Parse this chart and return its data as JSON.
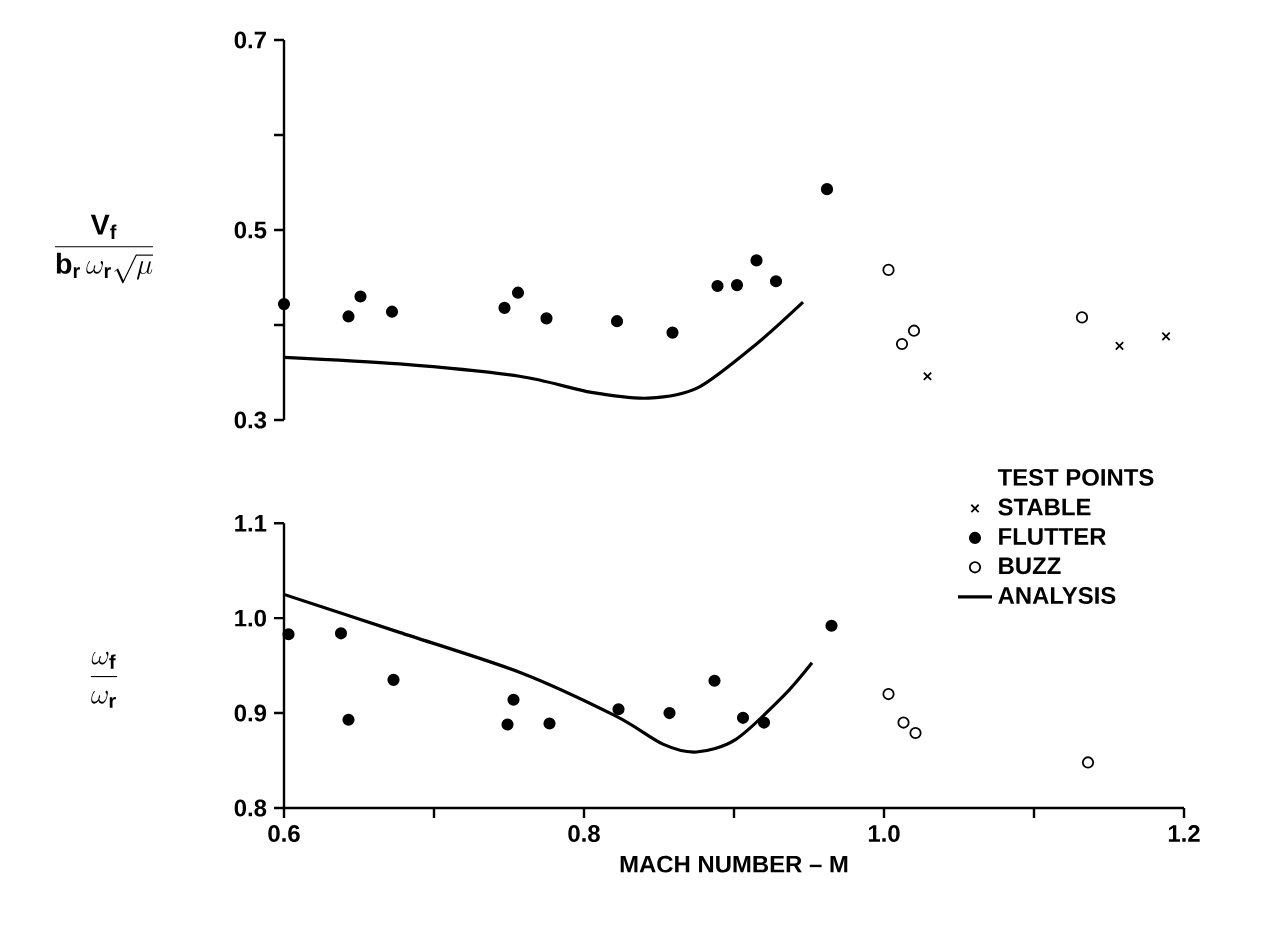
{
  "chart_data": [
    {
      "type": "scatter",
      "ylabel": "\\dfrac{\\mathbf{V}_{\\mathbf{f}}}{\\mathbf{b}_{\\mathbf{r}}\\,\\omega_{\\mathbf{r}}\\sqrt{\\mu}}",
      "xlim": [
        0.6,
        1.2
      ],
      "ylim": [
        0.3,
        0.7
      ],
      "yticks": [
        0.3,
        {
          "value": 0.4,
          "label": null
        },
        0.5,
        {
          "value": 0.6,
          "label": null
        },
        0.7
      ],
      "tick_labels": "y",
      "series": [
        {
          "marker": "cross",
          "color": "#000000",
          "x": [
            1.029,
            1.157,
            1.188
          ],
          "values": [
            0.346,
            0.378,
            0.388
          ]
        },
        {
          "marker": "circle",
          "color": "#000000",
          "x": [
            0.6,
            0.643,
            0.651,
            0.672,
            0.747,
            0.756,
            0.775,
            0.822,
            0.859,
            0.889,
            0.902,
            0.915,
            0.928,
            0.962
          ],
          "values": [
            0.422,
            0.409,
            0.43,
            0.414,
            0.418,
            0.434,
            0.407,
            0.404,
            0.392,
            0.441,
            0.442,
            0.468,
            0.446,
            0.543
          ]
        },
        {
          "marker": "open circle",
          "color": "#000000",
          "x": [
            1.003,
            1.012,
            1.02,
            1.132
          ],
          "values": [
            0.458,
            0.38,
            0.394,
            0.408
          ]
        },
        {
          "type": "line",
          "marker": "none",
          "line_style": "solid",
          "color": "#000000",
          "x": [
            0.6,
            0.677,
            0.757,
            0.805,
            0.843,
            0.876,
            0.915,
            0.946
          ],
          "values": [
            0.366,
            0.359,
            0.346,
            0.329,
            0.323,
            0.334,
            0.38,
            0.424
          ]
        }
      ]
    },
    {
      "type": "scatter",
      "ylabel": "\\dfrac{\\omega_{\\mathbf{f}}}{\\omega_{\\mathbf{r}}}",
      "xlabel": "MACH NUMBER – M",
      "legend_title": "TEST POINTS",
      "legend": "top right",
      "xlim": [
        0.6,
        1.2
      ],
      "xticks": [
        0.6,
        {
          "value": 0.7,
          "label": null
        },
        0.8,
        {
          "value": 0.9,
          "label": null
        },
        {
          "value": 1.0,
          "label": "1.0"
        },
        {
          "value": 1.1,
          "label": null
        },
        1.2
      ],
      "ylim": [
        0.8,
        1.1
      ],
      "yticks": [
        0.8,
        0.9,
        {
          "value": 1.0,
          "label": "1.0"
        },
        1.1
      ],
      "series": [
        {
          "name": "STABLE",
          "marker": "cross",
          "color": "#000000"
        },
        {
          "name": "FLUTTER",
          "marker": "circle",
          "color": "#000000",
          "x": [
            0.603,
            0.638,
            0.643,
            0.673,
            0.749,
            0.753,
            0.777,
            0.823,
            0.857,
            0.887,
            0.906,
            0.92,
            0.965
          ],
          "values": [
            0.983,
            0.984,
            0.893,
            0.935,
            0.888,
            0.914,
            0.889,
            0.904,
            0.9,
            0.934,
            0.895,
            0.89,
            0.992
          ]
        },
        {
          "name": "BUZZ",
          "marker": "open circle",
          "color": "#000000",
          "x": [
            1.003,
            1.013,
            1.021,
            1.136
          ],
          "values": [
            0.92,
            0.89,
            0.879,
            0.848
          ]
        },
        {
          "type": "line",
          "name": "ANALYSIS",
          "marker": "none",
          "line_style": "solid",
          "color": "#000000",
          "x": [
            0.6,
            0.677,
            0.757,
            0.821,
            0.853,
            0.875,
            0.901,
            0.933,
            0.952
          ],
          "values": [
            1.025,
            0.985,
            0.943,
            0.897,
            0.867,
            0.859,
            0.872,
            0.918,
            0.953
          ]
        }
      ]
    }
  ]
}
